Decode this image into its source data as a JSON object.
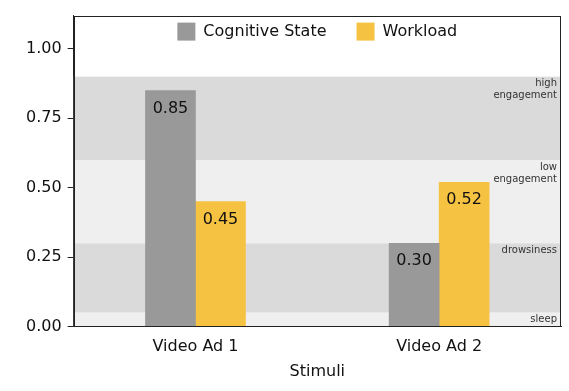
{
  "chart_data": {
    "type": "bar",
    "categories": [
      "Video Ad 1",
      "Video Ad 2"
    ],
    "series": [
      {
        "name": "Cognitive State",
        "color": "#999999",
        "values": [
          0.85,
          0.3
        ],
        "value_labels": [
          "0.85",
          "0.30"
        ]
      },
      {
        "name": "Workload",
        "color": "#f5c242",
        "values": [
          0.45,
          0.52
        ],
        "value_labels": [
          "0.45",
          "0.52"
        ]
      }
    ],
    "x_label": "Stimuli",
    "ylim": [
      0,
      1.12
    ],
    "yticks": [
      {
        "value": 0,
        "label": "0.00"
      },
      {
        "value": 0.25,
        "label": "0.25"
      },
      {
        "value": 0.5,
        "label": "0.50"
      },
      {
        "value": 0.75,
        "label": "0.75"
      },
      {
        "value": 1,
        "label": "1.00"
      }
    ],
    "legend": "top",
    "data_labels": true,
    "grid": false,
    "bands": [
      {
        "label_lines": [
          "high",
          "engagement"
        ],
        "range": [
          0.6,
          0.9
        ]
      },
      {
        "label_lines": [
          "low",
          "engagement"
        ],
        "range": [
          0.3,
          0.6
        ]
      },
      {
        "label_lines": [
          "drowsiness"
        ],
        "range": [
          0.05,
          0.3
        ]
      },
      {
        "label_lines": [
          "sleep"
        ],
        "range": [
          0,
          0.05
        ]
      }
    ]
  }
}
